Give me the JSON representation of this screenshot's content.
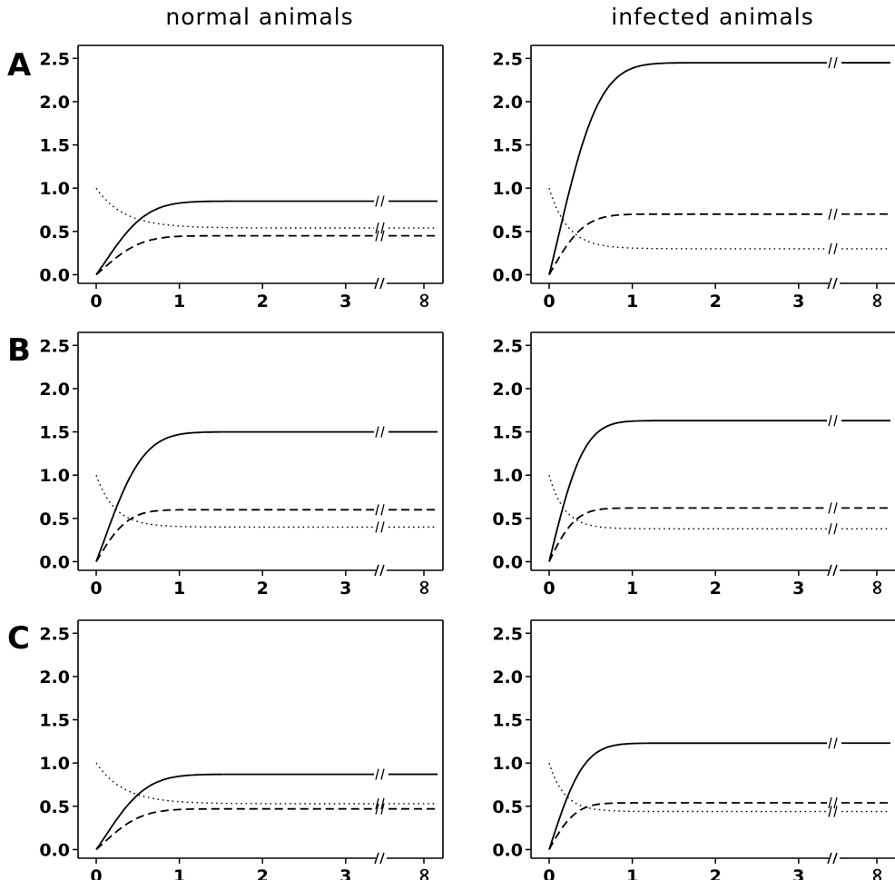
{
  "column_titles": [
    "normal animals",
    "infected animals"
  ],
  "row_labels": [
    "A",
    "B",
    "C"
  ],
  "chart_data": [
    {
      "type": "line",
      "panel": "A",
      "column": "normal animals",
      "xticks": [
        "0",
        "1",
        "2",
        "3",
        "∞"
      ],
      "ylim": [
        -0.1,
        2.65
      ],
      "yticks": [
        "0.0",
        "0.5",
        "1.0",
        "1.5",
        "2.0",
        "2.5"
      ],
      "series": [
        {
          "style": "solid",
          "k": 2.6,
          "x": [
            0,
            0.5,
            1,
            2,
            3,
            "∞"
          ],
          "y": [
            0,
            0.63,
            0.8,
            0.85,
            0.85,
            0.85
          ]
        },
        {
          "style": "dashed",
          "k": 3.0,
          "x": [
            0,
            0.5,
            1,
            2,
            3,
            "∞"
          ],
          "y": [
            0,
            0.36,
            0.44,
            0.45,
            0.45,
            0.45
          ]
        },
        {
          "style": "dotted",
          "start": 1.0,
          "k": 3.0,
          "x": [
            0,
            0.5,
            1,
            2,
            3,
            "∞"
          ],
          "y": [
            1.0,
            0.64,
            0.56,
            0.54,
            0.54,
            0.54
          ]
        }
      ]
    },
    {
      "type": "line",
      "panel": "A",
      "column": "infected animals",
      "xticks": [
        "0",
        "1",
        "2",
        "3",
        "∞"
      ],
      "ylim": [
        -0.1,
        2.65
      ],
      "yticks": [
        "0.0",
        "0.5",
        "1.0",
        "1.5",
        "2.0",
        "2.5"
      ],
      "series": [
        {
          "style": "solid",
          "k": 2.6,
          "x": [
            0,
            0.5,
            1,
            2,
            3,
            "∞"
          ],
          "y": [
            0,
            1.44,
            2.26,
            2.45,
            2.45,
            2.45
          ]
        },
        {
          "style": "dashed",
          "k": 4.0,
          "x": [
            0,
            0.5,
            1,
            2,
            3,
            "∞"
          ],
          "y": [
            0,
            0.6,
            0.69,
            0.7,
            0.7,
            0.7
          ]
        },
        {
          "style": "dotted",
          "start": 1.0,
          "k": 4.5,
          "x": [
            0,
            0.5,
            1,
            2,
            3,
            "∞"
          ],
          "y": [
            1.0,
            0.37,
            0.3,
            0.3,
            0.3,
            0.3
          ]
        }
      ]
    },
    {
      "type": "line",
      "panel": "B",
      "column": "normal animals",
      "xticks": [
        "0",
        "1",
        "2",
        "3",
        "∞"
      ],
      "ylim": [
        -0.1,
        2.65
      ],
      "yticks": [
        "0.0",
        "0.5",
        "1.0",
        "1.5",
        "2.0",
        "2.5"
      ],
      "series": [
        {
          "style": "solid",
          "k": 2.8,
          "x": [
            0,
            0.5,
            1,
            2,
            3,
            "∞"
          ],
          "y": [
            0,
            0.92,
            1.37,
            1.5,
            1.5,
            1.5
          ]
        },
        {
          "style": "dashed",
          "k": 4.5,
          "x": [
            0,
            0.5,
            1,
            2,
            3,
            "∞"
          ],
          "y": [
            0,
            0.54,
            0.6,
            0.6,
            0.6,
            0.6
          ]
        },
        {
          "style": "dotted",
          "start": 1.0,
          "k": 4.5,
          "x": [
            0,
            0.5,
            1,
            2,
            3,
            "∞"
          ],
          "y": [
            1.0,
            0.45,
            0.4,
            0.4,
            0.4,
            0.4
          ]
        }
      ]
    },
    {
      "type": "line",
      "panel": "B",
      "column": "infected animals",
      "xticks": [
        "0",
        "1",
        "2",
        "3",
        "∞"
      ],
      "ylim": [
        -0.1,
        2.65
      ],
      "yticks": [
        "0.0",
        "0.5",
        "1.0",
        "1.5",
        "2.0",
        "2.5"
      ],
      "series": [
        {
          "style": "solid",
          "k": 4.0,
          "x": [
            0,
            0.5,
            1,
            2,
            3,
            "∞"
          ],
          "y": [
            0,
            1.42,
            1.62,
            1.63,
            1.63,
            1.63
          ]
        },
        {
          "style": "dashed",
          "k": 5.5,
          "x": [
            0,
            0.5,
            1,
            2,
            3,
            "∞"
          ],
          "y": [
            0,
            0.58,
            0.62,
            0.62,
            0.62,
            0.62
          ]
        },
        {
          "style": "dotted",
          "start": 1.0,
          "k": 5.5,
          "x": [
            0,
            0.5,
            1,
            2,
            3,
            "∞"
          ],
          "y": [
            1.0,
            0.41,
            0.38,
            0.38,
            0.38,
            0.38
          ]
        }
      ]
    },
    {
      "type": "line",
      "panel": "C",
      "column": "normal animals",
      "xticks": [
        "0",
        "1",
        "2",
        "3",
        "∞"
      ],
      "ylim": [
        -0.1,
        2.65
      ],
      "yticks": [
        "0.0",
        "0.5",
        "1.0",
        "1.5",
        "2.0",
        "2.5"
      ],
      "series": [
        {
          "style": "solid",
          "k": 2.6,
          "x": [
            0,
            0.5,
            1,
            2,
            3,
            "∞"
          ],
          "y": [
            0,
            0.64,
            0.82,
            0.87,
            0.87,
            0.87
          ]
        },
        {
          "style": "dashed",
          "k": 3.0,
          "x": [
            0,
            0.5,
            1,
            2,
            3,
            "∞"
          ],
          "y": [
            0,
            0.37,
            0.45,
            0.47,
            0.47,
            0.47
          ]
        },
        {
          "style": "dotted",
          "start": 1.0,
          "k": 3.0,
          "x": [
            0,
            0.5,
            1,
            2,
            3,
            "∞"
          ],
          "y": [
            1.0,
            0.63,
            0.55,
            0.53,
            0.53,
            0.53
          ]
        }
      ]
    },
    {
      "type": "line",
      "panel": "C",
      "column": "infected animals",
      "xticks": [
        "0",
        "1",
        "2",
        "3",
        "∞"
      ],
      "ylim": [
        -0.1,
        2.65
      ],
      "yticks": [
        "0.0",
        "0.5",
        "1.0",
        "1.5",
        "2.0",
        "2.5"
      ],
      "series": [
        {
          "style": "solid",
          "k": 4.0,
          "x": [
            0,
            0.5,
            1,
            2,
            3,
            "∞"
          ],
          "y": [
            0,
            1.07,
            1.22,
            1.23,
            1.23,
            1.23
          ]
        },
        {
          "style": "dashed",
          "k": 5.5,
          "x": [
            0,
            0.5,
            1,
            2,
            3,
            "∞"
          ],
          "y": [
            0,
            0.51,
            0.54,
            0.54,
            0.54,
            0.54
          ]
        },
        {
          "style": "dotted",
          "start": 1.0,
          "k": 5.5,
          "x": [
            0,
            0.5,
            1,
            2,
            3,
            "∞"
          ],
          "y": [
            1.0,
            0.47,
            0.44,
            0.44,
            0.44,
            0.44
          ]
        }
      ]
    }
  ]
}
